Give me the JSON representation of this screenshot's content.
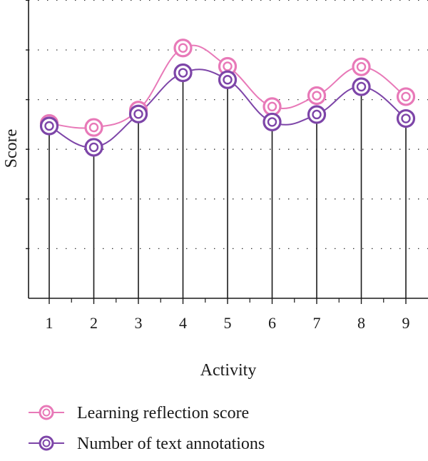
{
  "chart_data": {
    "type": "line",
    "title": "",
    "xlabel": "Activity",
    "ylabel": "Score",
    "categories": [
      "1",
      "2",
      "3",
      "4",
      "5",
      "6",
      "7",
      "8",
      "9"
    ],
    "ylim": [
      0,
      6
    ],
    "grid": true,
    "grid_style": "dotted-horizontal",
    "legend_position": "bottom-left",
    "series": [
      {
        "name": "Learning reflection score",
        "color": "#e879b8",
        "marker": "double-circle",
        "values": [
          3.52,
          3.44,
          3.79,
          5.04,
          4.67,
          3.86,
          4.08,
          4.66,
          4.06
        ]
      },
      {
        "name": "Number of text annotations",
        "color": "#7d45a8",
        "marker": "double-circle",
        "values": [
          3.47,
          3.04,
          3.71,
          4.54,
          4.4,
          3.55,
          3.7,
          4.26,
          3.62
        ]
      }
    ],
    "stems": {
      "color": "#1a1a1a",
      "to_series": "Number of text annotations"
    }
  }
}
